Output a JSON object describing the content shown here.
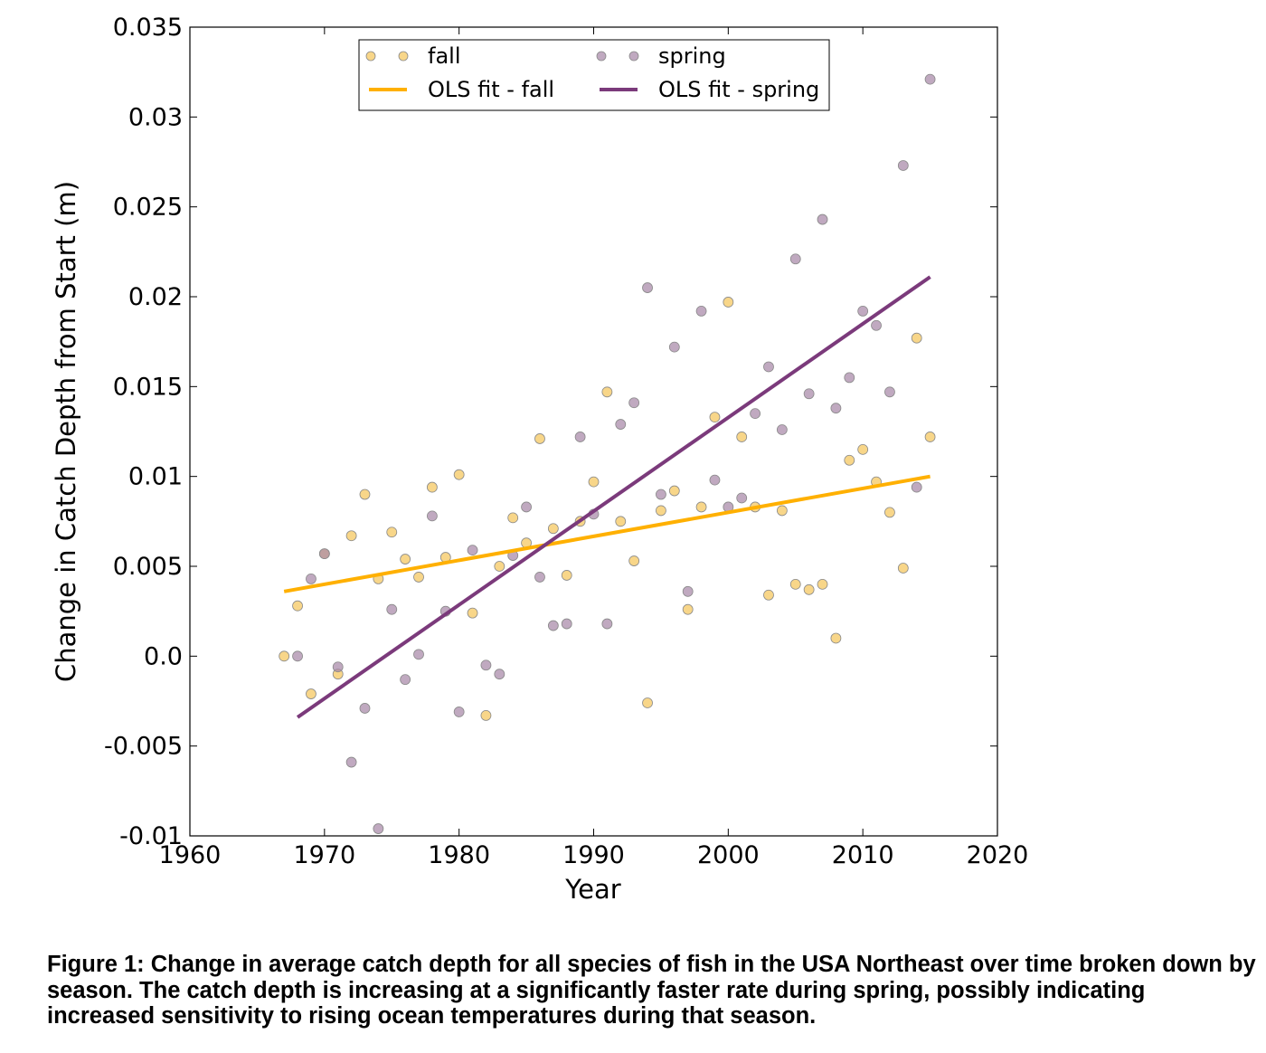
{
  "chart_data": {
    "type": "scatter",
    "xlabel": "Year",
    "ylabel": "Change in Catch Depth from Start (m)",
    "xlim": [
      1960,
      2020
    ],
    "ylim": [
      -0.01,
      0.035
    ],
    "x_ticks": [
      1960,
      1970,
      1980,
      1990,
      2000,
      2010,
      2020
    ],
    "y_ticks": [
      -0.01,
      -0.005,
      0.0,
      0.005,
      0.01,
      0.015,
      0.02,
      0.025,
      0.03,
      0.035
    ],
    "x_tick_labels": [
      "1960",
      "1970",
      "1980",
      "1990",
      "2000",
      "2010",
      "2020"
    ],
    "y_tick_labels": [
      "-0.01",
      "-0.005",
      "0.0",
      "0.005",
      "0.01",
      "0.015",
      "0.02",
      "0.025",
      "0.03",
      "0.035"
    ],
    "grid": false,
    "legend_position": "top-center",
    "series": [
      {
        "name": "fall",
        "kind": "scatter",
        "color": "#f5c65c",
        "points": [
          [
            1967,
            0.0
          ],
          [
            1968,
            0.0028
          ],
          [
            1969,
            -0.0021
          ],
          [
            1970,
            0.0057
          ],
          [
            1971,
            -0.001
          ],
          [
            1972,
            0.0067
          ],
          [
            1973,
            0.009
          ],
          [
            1974,
            0.0043
          ],
          [
            1975,
            0.0069
          ],
          [
            1976,
            0.0054
          ],
          [
            1977,
            0.0044
          ],
          [
            1978,
            0.0094
          ],
          [
            1979,
            0.0055
          ],
          [
            1980,
            0.0101
          ],
          [
            1981,
            0.0024
          ],
          [
            1982,
            -0.0033
          ],
          [
            1983,
            0.005
          ],
          [
            1984,
            0.0077
          ],
          [
            1985,
            0.0063
          ],
          [
            1986,
            0.0121
          ],
          [
            1987,
            0.0071
          ],
          [
            1988,
            0.0045
          ],
          [
            1989,
            0.0075
          ],
          [
            1990,
            0.0097
          ],
          [
            1991,
            0.0147
          ],
          [
            1992,
            0.0075
          ],
          [
            1993,
            0.0053
          ],
          [
            1994,
            -0.0026
          ],
          [
            1995,
            0.0081
          ],
          [
            1996,
            0.0092
          ],
          [
            1997,
            0.0026
          ],
          [
            1998,
            0.0083
          ],
          [
            1999,
            0.0133
          ],
          [
            2000,
            0.0197
          ],
          [
            2001,
            0.0122
          ],
          [
            2002,
            0.0083
          ],
          [
            2003,
            0.0034
          ],
          [
            2004,
            0.0081
          ],
          [
            2005,
            0.004
          ],
          [
            2006,
            0.0037
          ],
          [
            2007,
            0.004
          ],
          [
            2008,
            0.001
          ],
          [
            2009,
            0.0109
          ],
          [
            2010,
            0.0115
          ],
          [
            2011,
            0.0097
          ],
          [
            2012,
            0.008
          ],
          [
            2013,
            0.0049
          ],
          [
            2014,
            0.0177
          ],
          [
            2015,
            0.0122
          ]
        ]
      },
      {
        "name": "spring",
        "kind": "scatter",
        "color": "#a788a8",
        "points": [
          [
            1968,
            0.0
          ],
          [
            1969,
            0.0043
          ],
          [
            1970,
            0.0057
          ],
          [
            1971,
            -0.0006
          ],
          [
            1972,
            -0.0059
          ],
          [
            1973,
            -0.0029
          ],
          [
            1974,
            -0.0096
          ],
          [
            1975,
            0.0026
          ],
          [
            1976,
            -0.0013
          ],
          [
            1977,
            0.0001
          ],
          [
            1978,
            0.0078
          ],
          [
            1979,
            0.0025
          ],
          [
            1980,
            -0.0031
          ],
          [
            1981,
            0.0059
          ],
          [
            1982,
            -0.0005
          ],
          [
            1983,
            -0.001
          ],
          [
            1984,
            0.0056
          ],
          [
            1985,
            0.0083
          ],
          [
            1986,
            0.0044
          ],
          [
            1987,
            0.0017
          ],
          [
            1988,
            0.0018
          ],
          [
            1989,
            0.0122
          ],
          [
            1990,
            0.0079
          ],
          [
            1991,
            0.0018
          ],
          [
            1992,
            0.0129
          ],
          [
            1993,
            0.0141
          ],
          [
            1994,
            0.0205
          ],
          [
            1995,
            0.009
          ],
          [
            1996,
            0.0172
          ],
          [
            1997,
            0.0036
          ],
          [
            1998,
            0.0192
          ],
          [
            1999,
            0.0098
          ],
          [
            2000,
            0.0083
          ],
          [
            2001,
            0.0088
          ],
          [
            2002,
            0.0135
          ],
          [
            2003,
            0.0161
          ],
          [
            2004,
            0.0126
          ],
          [
            2005,
            0.0221
          ],
          [
            2006,
            0.0146
          ],
          [
            2007,
            0.0243
          ],
          [
            2008,
            0.0138
          ],
          [
            2009,
            0.0155
          ],
          [
            2010,
            0.0192
          ],
          [
            2011,
            0.0184
          ],
          [
            2012,
            0.0147
          ],
          [
            2013,
            0.0273
          ],
          [
            2014,
            0.0094
          ],
          [
            2015,
            0.0321
          ]
        ]
      },
      {
        "name": "OLS fit - fall",
        "kind": "line",
        "color": "#ffb000",
        "points": [
          [
            1967,
            0.0036
          ],
          [
            2015,
            0.01
          ]
        ]
      },
      {
        "name": "OLS fit - spring",
        "kind": "line",
        "color": "#7b3a7b",
        "points": [
          [
            1968,
            -0.0034
          ],
          [
            2015,
            0.0211
          ]
        ]
      }
    ]
  },
  "caption": "Figure 1: Change in average catch depth for all species of fish in the USA Northeast over time broken down by season. The catch depth is increasing at a significantly faster rate during spring, possibly indicating increased sensitivity to rising ocean temperatures during that season."
}
